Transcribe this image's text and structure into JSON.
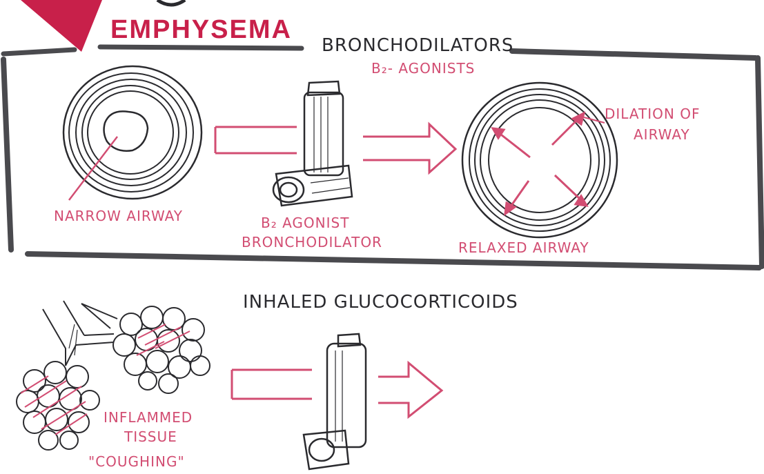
{
  "colors": {
    "ink": "#2a2a2e",
    "accent": "#d24d72",
    "title": "#c8204a"
  },
  "top_title": "EMPHYSEMA",
  "section1": {
    "heading": "BRONCHODILATORS",
    "subheading": "B₂- AGONISTS",
    "narrow_label": "NARROW AIRWAY",
    "inhaler_label_line1": "B₂ AGONIST",
    "inhaler_label_line2": "BRONCHODILATOR",
    "dilation_label_line1": "DILATION OF",
    "dilation_label_line2": "AIRWAY",
    "relaxed_label": "RELAXED AIRWAY"
  },
  "section2": {
    "heading": "INHALED GLUCOCORTICOIDS",
    "tissue_label_line1": "INFLAMMED",
    "tissue_label_line2": "TISSUE",
    "coughing_label": "\"COUGHING\""
  }
}
